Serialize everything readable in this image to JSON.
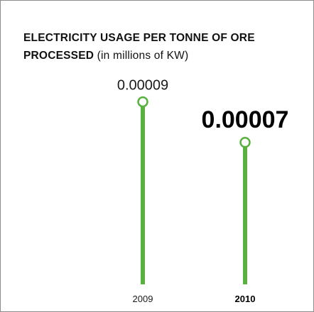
{
  "title_bold_line1": "ELECTRICITY USAGE PER TONNE OF ORE",
  "title_bold_line2": "PROCESSED",
  "title_unit": "(in millions of KW)",
  "colors": {
    "bar": "#5ab13f",
    "text": "#111111",
    "border": "#8c8c8c"
  },
  "chart_data": {
    "type": "bar",
    "title": "ELECTRICITY USAGE PER TONNE OF ORE PROCESSED (in millions of KW)",
    "categories": [
      "2009",
      "2010"
    ],
    "values": [
      9e-05,
      7e-05
    ],
    "value_labels": [
      "0.00009",
      "0.00007"
    ],
    "highlighted_category": "2010",
    "ylim": [
      0,
      0.0001
    ],
    "grid": false,
    "legend": "none"
  }
}
